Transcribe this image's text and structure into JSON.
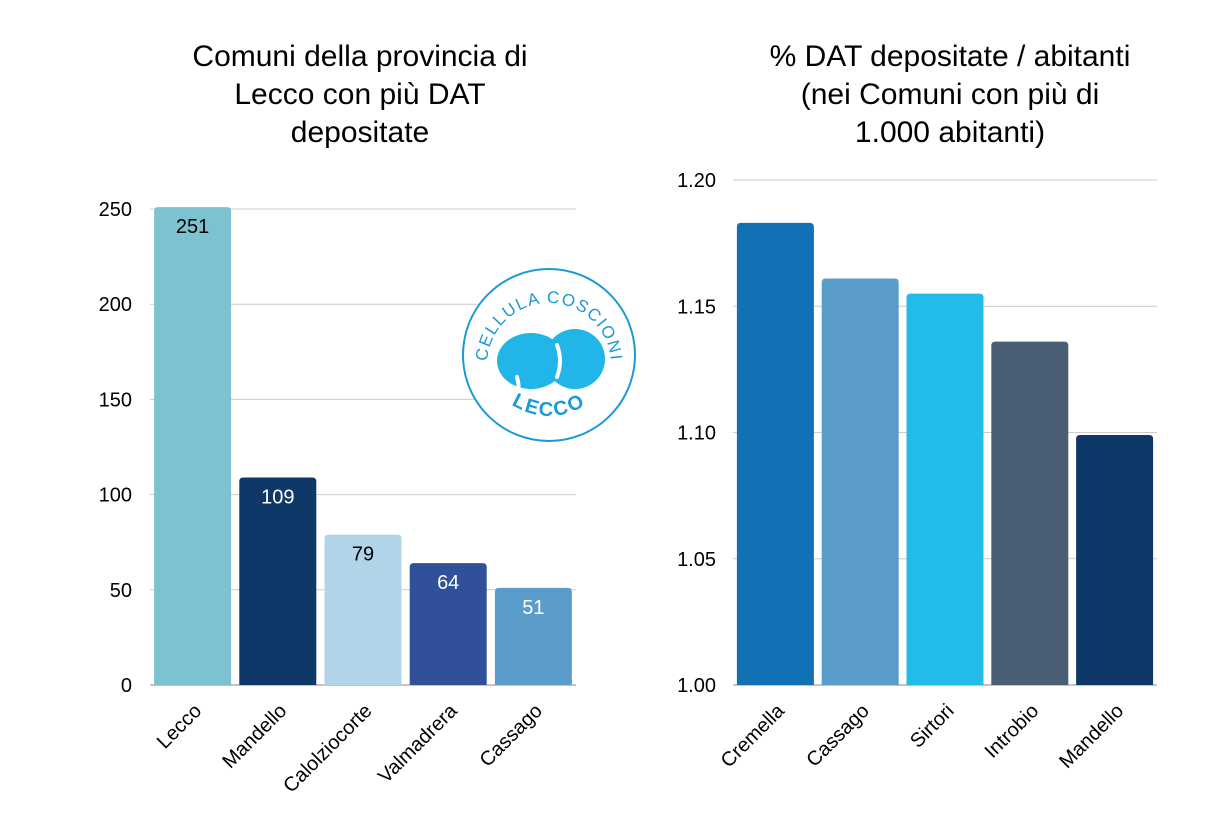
{
  "chart_data": [
    {
      "type": "bar",
      "title_lines": [
        "Comuni della provincia di",
        "Lecco con più DAT",
        "depositate"
      ],
      "categories": [
        "Lecco",
        "Mandello",
        "Calolziocorte",
        "Valmadrera",
        "Cassago"
      ],
      "values": [
        251,
        109,
        79,
        64,
        51
      ],
      "value_labels": [
        "251",
        "109",
        "79",
        "64",
        "51"
      ],
      "colors": [
        "#7cc2d1",
        "#0e3868",
        "#b2d4e9",
        "#30519a",
        "#5b9dca"
      ],
      "label_colors": [
        "#000000",
        "#ffffff",
        "#000000",
        "#ffffff",
        "#ffffff"
      ],
      "yticks": [
        0,
        50,
        100,
        150,
        200,
        250
      ],
      "ylim": [
        0,
        250
      ],
      "grid": true,
      "xlabel": "",
      "ylabel": ""
    },
    {
      "type": "bar",
      "title_lines": [
        "% DAT depositate / abitanti",
        "(nei Comuni con più di",
        "1.000 abitanti)"
      ],
      "categories": [
        "Cremella",
        "Cassago",
        "Sirtori",
        "Introbio",
        "Mandello"
      ],
      "values": [
        1.183,
        1.161,
        1.155,
        1.136,
        1.099
      ],
      "colors": [
        "#1171b4",
        "#5b9dca",
        "#23bbe8",
        "#4a5e74",
        "#0e3868"
      ],
      "yticks": [
        "1.00",
        "1.05",
        "1.10",
        "1.15",
        "1.20"
      ],
      "ylim": [
        1.0,
        1.2
      ],
      "grid": true,
      "xlabel": "",
      "ylabel": ""
    }
  ],
  "logo": {
    "text_top": "CELLULA COSCIONI",
    "text_bottom": "LECCO",
    "color": "#1a9ad6"
  }
}
